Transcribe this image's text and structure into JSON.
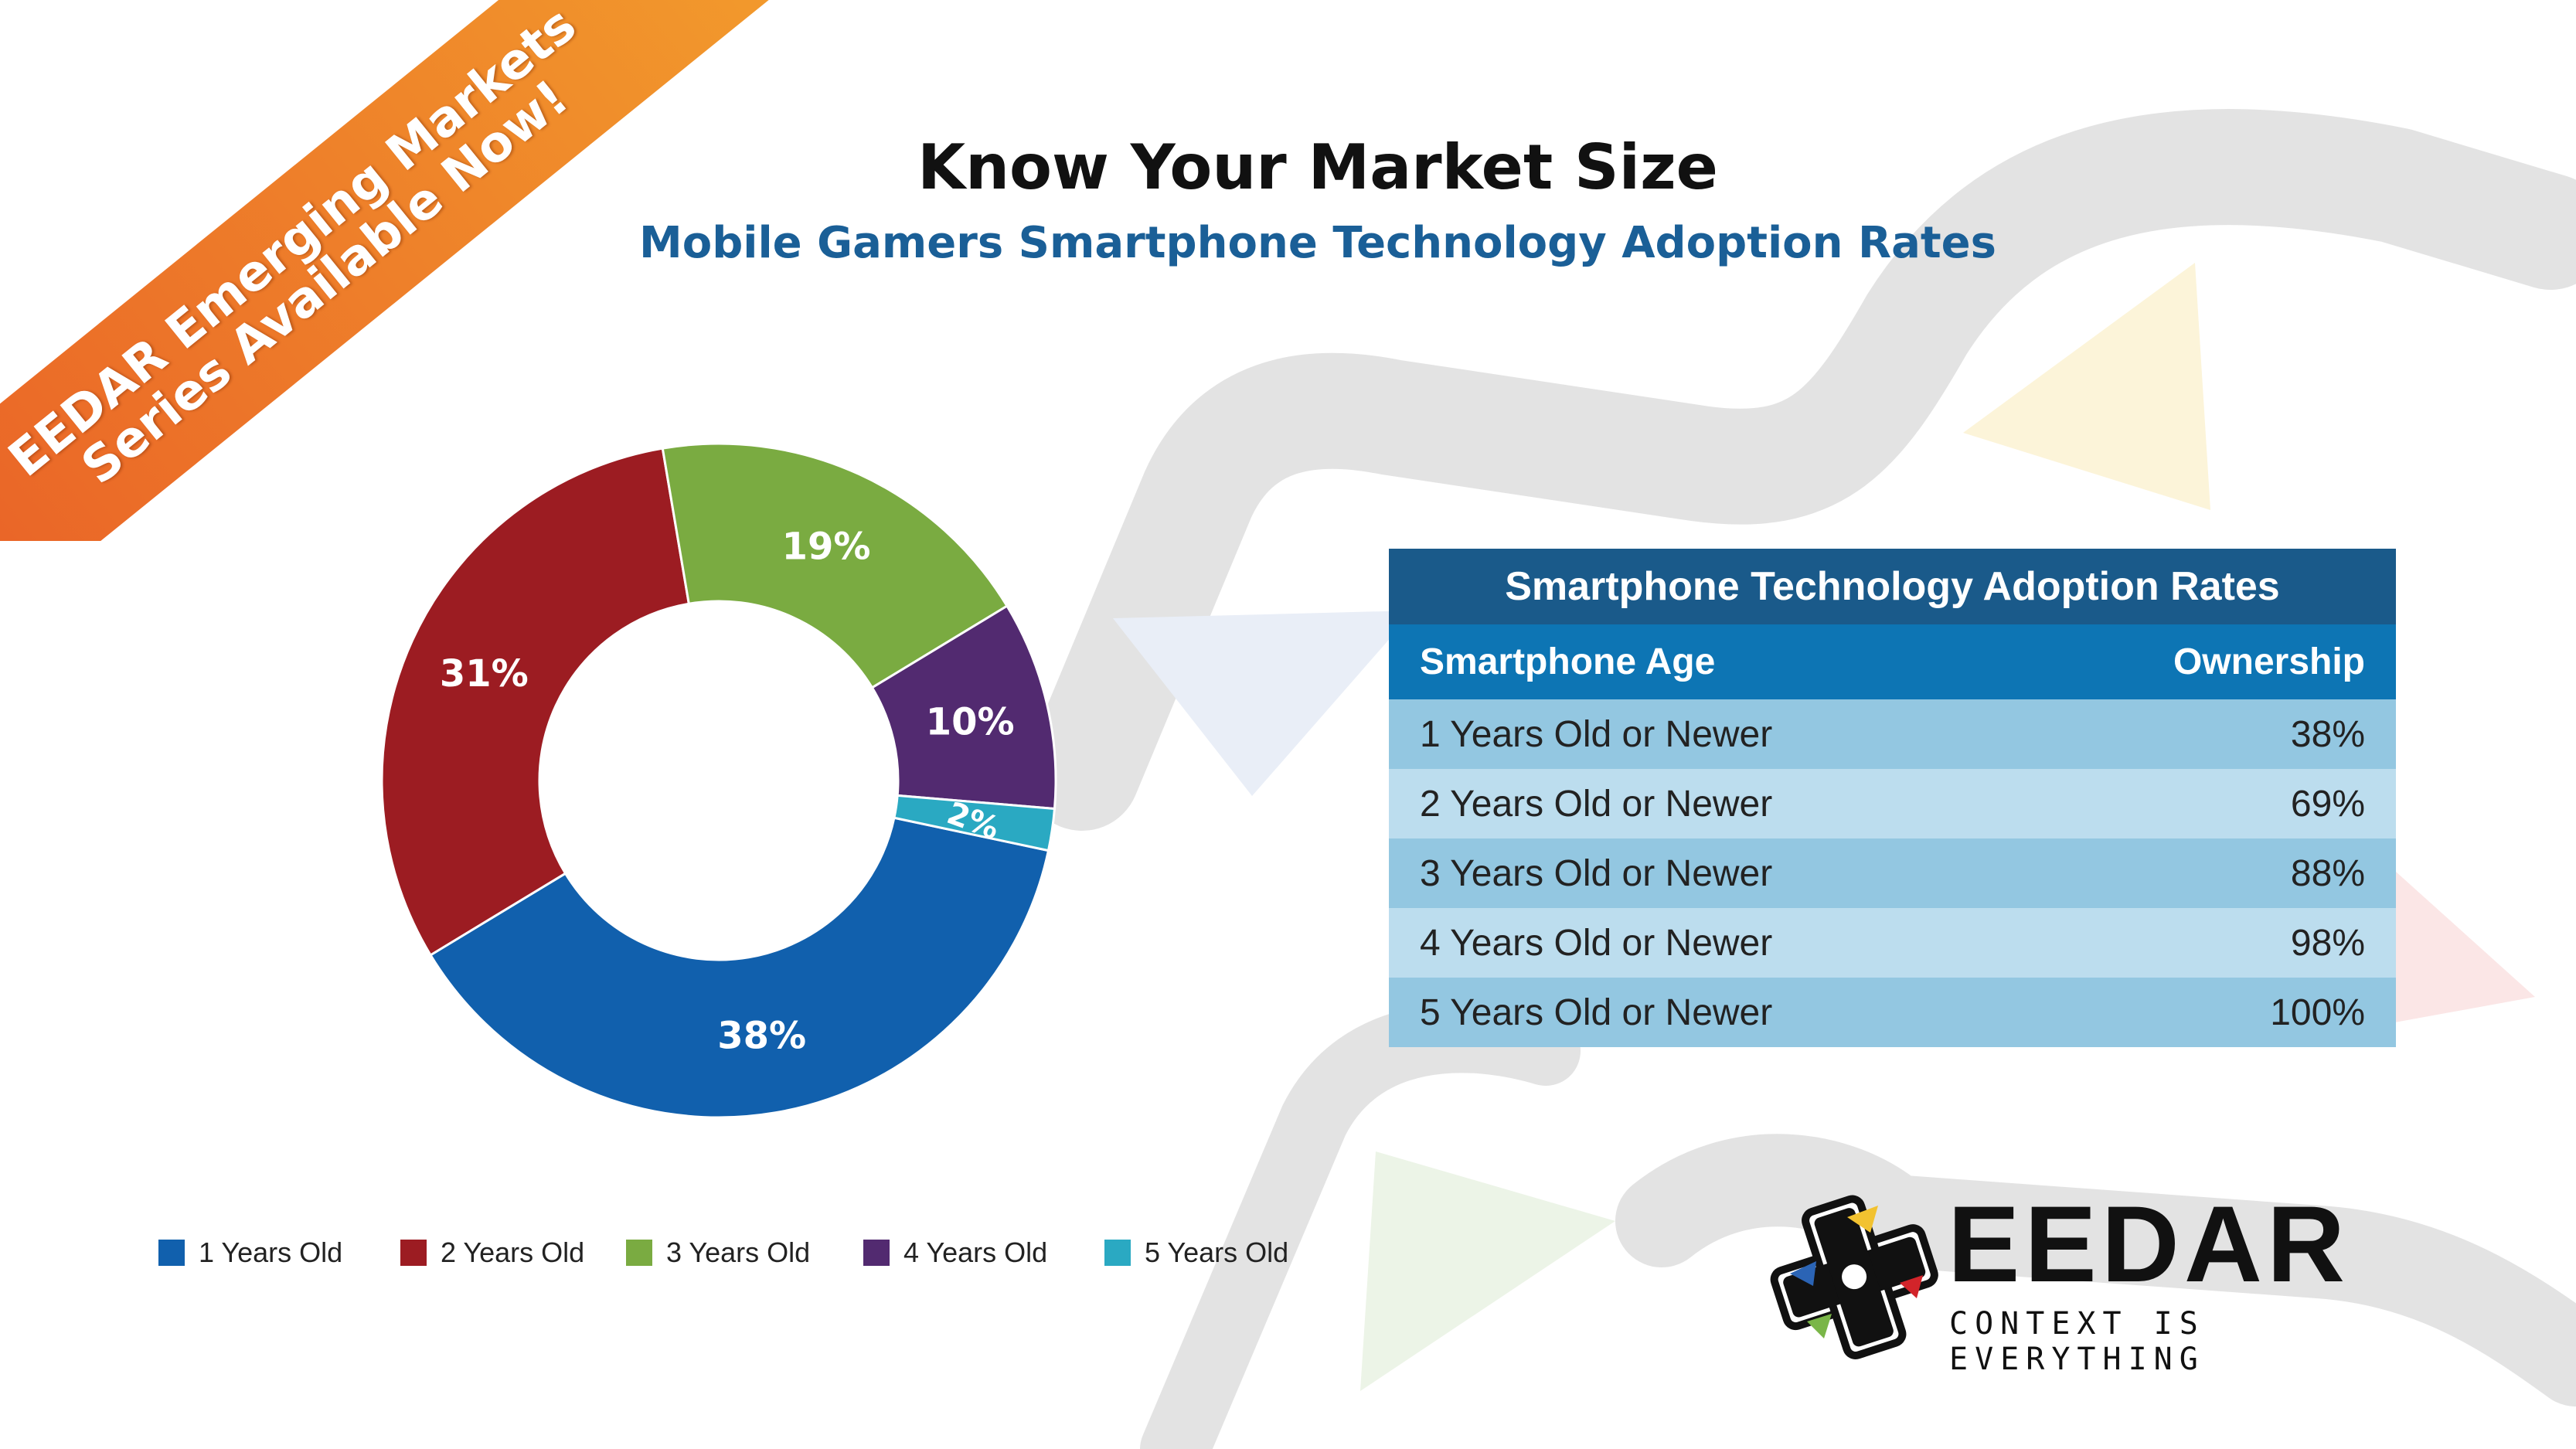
{
  "banner": {
    "line1": "EEDAR Emerging Markets",
    "line2": "Series Available Now!"
  },
  "title": "Know Your Market Size",
  "subtitle": "Mobile Gamers Smartphone Technology Adoption Rates",
  "colors": {
    "one": "#1160ad",
    "two": "#9c1c22",
    "three": "#7aab41",
    "four": "#522a70",
    "five": "#2aa9c2"
  },
  "chart_data": {
    "type": "pie",
    "categories": [
      "1 Years Old",
      "2 Years Old",
      "3 Years Old",
      "4 Years Old",
      "5 Years Old"
    ],
    "values": [
      38,
      31,
      19,
      10,
      2
    ],
    "labels": [
      "38%",
      "31%",
      "19%",
      "10%",
      "2%"
    ],
    "colors": [
      "#1160ad",
      "#9c1c22",
      "#7aab41",
      "#522a70",
      "#2aa9c2"
    ],
    "legend_position": "bottom"
  },
  "table": {
    "title": "Smartphone Technology Adoption Rates",
    "headers": [
      "Smartphone Age",
      "Ownership"
    ],
    "rows": [
      [
        "1 Years Old or Newer",
        "38%"
      ],
      [
        "2 Years Old or Newer",
        "69%"
      ],
      [
        "3 Years Old or Newer",
        "88%"
      ],
      [
        "4 Years Old or Newer",
        "98%"
      ],
      [
        "5 Years Old or Newer",
        "100%"
      ]
    ]
  },
  "logo": {
    "name": "EEDAR",
    "tagline": "CONTEXT IS EVERYTHING"
  }
}
